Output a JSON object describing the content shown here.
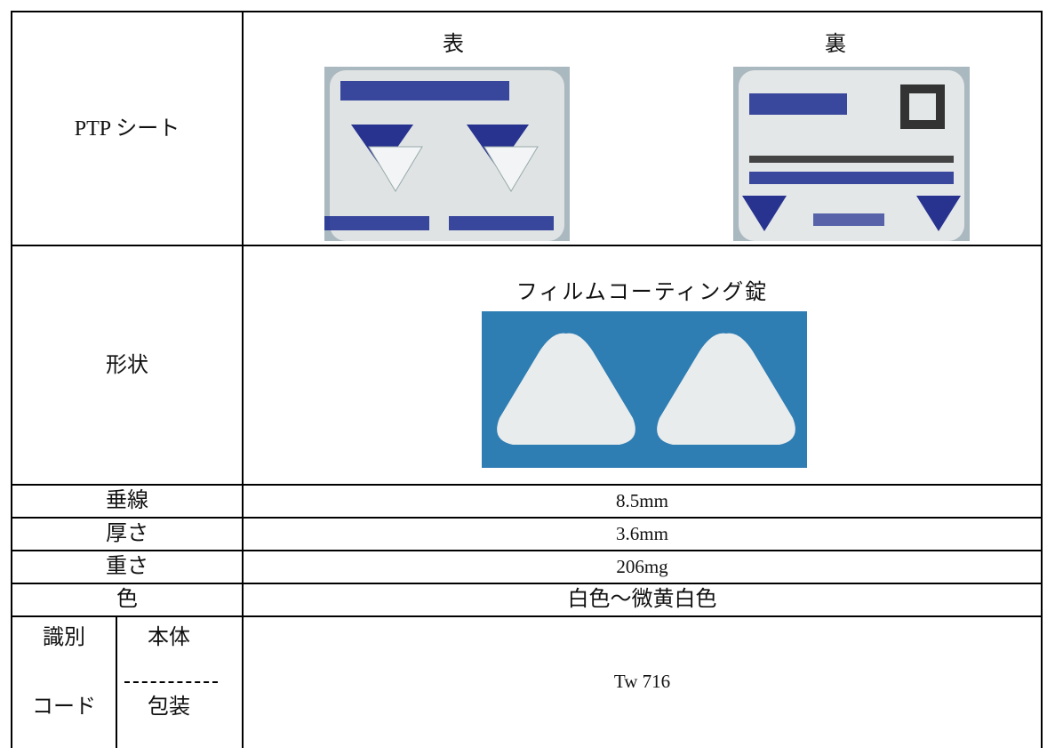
{
  "ptp_sheet": {
    "label": "PTP シート",
    "front": "表",
    "back": "裏"
  },
  "shape": {
    "label": "形状",
    "description": "フィルムコーティング錠"
  },
  "rows": [
    {
      "label": "垂線",
      "value": "8.5mm"
    },
    {
      "label": "厚さ",
      "value": "3.6mm"
    },
    {
      "label": "重さ",
      "value": "206mg"
    },
    {
      "label": "色",
      "value": "白色～微黄白色"
    }
  ],
  "identification": {
    "label_line1": "識別",
    "label_line2": "コード",
    "body": "本体",
    "package": "包装",
    "value": "Tw 716"
  }
}
